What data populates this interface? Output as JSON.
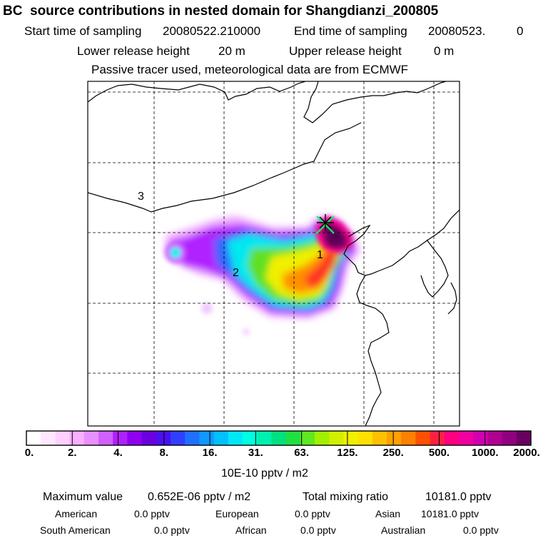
{
  "title": "BC  source contributions in nested domain for Shangdianzi_200805",
  "header": {
    "start_label": "Start time of sampling",
    "start_value": "20080522.210000",
    "end_label": "End time of sampling",
    "end_value": "20080523.",
    "end_value_suffix": "0",
    "lower_label": "Lower release height",
    "lower_value": "20 m",
    "upper_label": "Upper release height",
    "upper_value": "0 m",
    "tracer_note": "Passive tracer used, meteorological data are from ECMWF"
  },
  "map": {
    "region_labels": [
      "1",
      "2",
      "3"
    ]
  },
  "colorbar": {
    "ticks": [
      "0.",
      "2.",
      "4.",
      "8.",
      "16.",
      "31.",
      "63.",
      "125.",
      "250.",
      "500.",
      "1000.",
      "2000."
    ],
    "unit": "10E-10 pptv / m2",
    "colors": [
      "#ffffff",
      "#ffe8ff",
      "#ffd0ff",
      "#f8b0ff",
      "#e890ff",
      "#d060ff",
      "#b020ff",
      "#9000f0",
      "#6a00e0",
      "#4a10f0",
      "#3040ff",
      "#2070ff",
      "#1098ff",
      "#00c0ff",
      "#00e8f8",
      "#00ffe0",
      "#00f0b0",
      "#00e080",
      "#20e040",
      "#60e820",
      "#a0f000",
      "#d0f000",
      "#f0f000",
      "#ffe000",
      "#ffc000",
      "#ffa000",
      "#ff8000",
      "#ff5000",
      "#ff2040",
      "#ff0080",
      "#f000a0",
      "#d000b0",
      "#b00090",
      "#900080",
      "#6a0060"
    ]
  },
  "stats": {
    "max_label": "Maximum value",
    "max_value": "0.652E-06 pptv / m2",
    "total_label": "Total mixing ratio",
    "total_value": "10181.0 pptv",
    "regions": [
      {
        "name": "American",
        "value": "0.0 pptv"
      },
      {
        "name": "European",
        "value": "0.0 pptv"
      },
      {
        "name": "Asian",
        "value": "10181.0 pptv"
      },
      {
        "name": "South American",
        "value": "0.0 pptv"
      },
      {
        "name": "African",
        "value": "0.0 pptv"
      },
      {
        "name": "Australian",
        "value": "0.0 pptv"
      }
    ]
  }
}
